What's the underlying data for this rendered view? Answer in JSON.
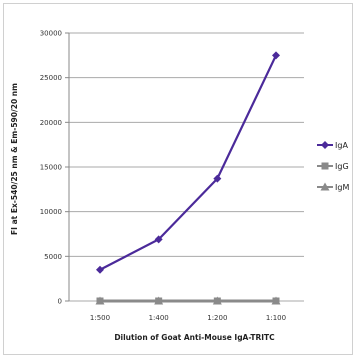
{
  "chart_data": {
    "type": "line",
    "title": "",
    "xlabel": "Dilution of Goat Anti-Mouse IgA-TRITC",
    "ylabel": "FI at Ex-540/25 nm & Em-590/20 nm",
    "categories": [
      "1:500",
      "1:400",
      "1:200",
      "1:100"
    ],
    "ylim": [
      0,
      30000
    ],
    "yticks": [
      0,
      5000,
      10000,
      15000,
      20000,
      25000,
      30000
    ],
    "grid": true,
    "legend": "right",
    "series": [
      {
        "name": "IgA",
        "values": [
          3500,
          6900,
          13700,
          27500
        ],
        "color": "#4b2a9a",
        "marker": "diamond"
      },
      {
        "name": "IgG",
        "values": [
          0,
          0,
          0,
          0
        ],
        "color": "#8a8a8a",
        "marker": "square"
      },
      {
        "name": "IgM",
        "values": [
          0,
          0,
          0,
          0
        ],
        "color": "#8a8a8a",
        "marker": "triangle"
      }
    ]
  }
}
